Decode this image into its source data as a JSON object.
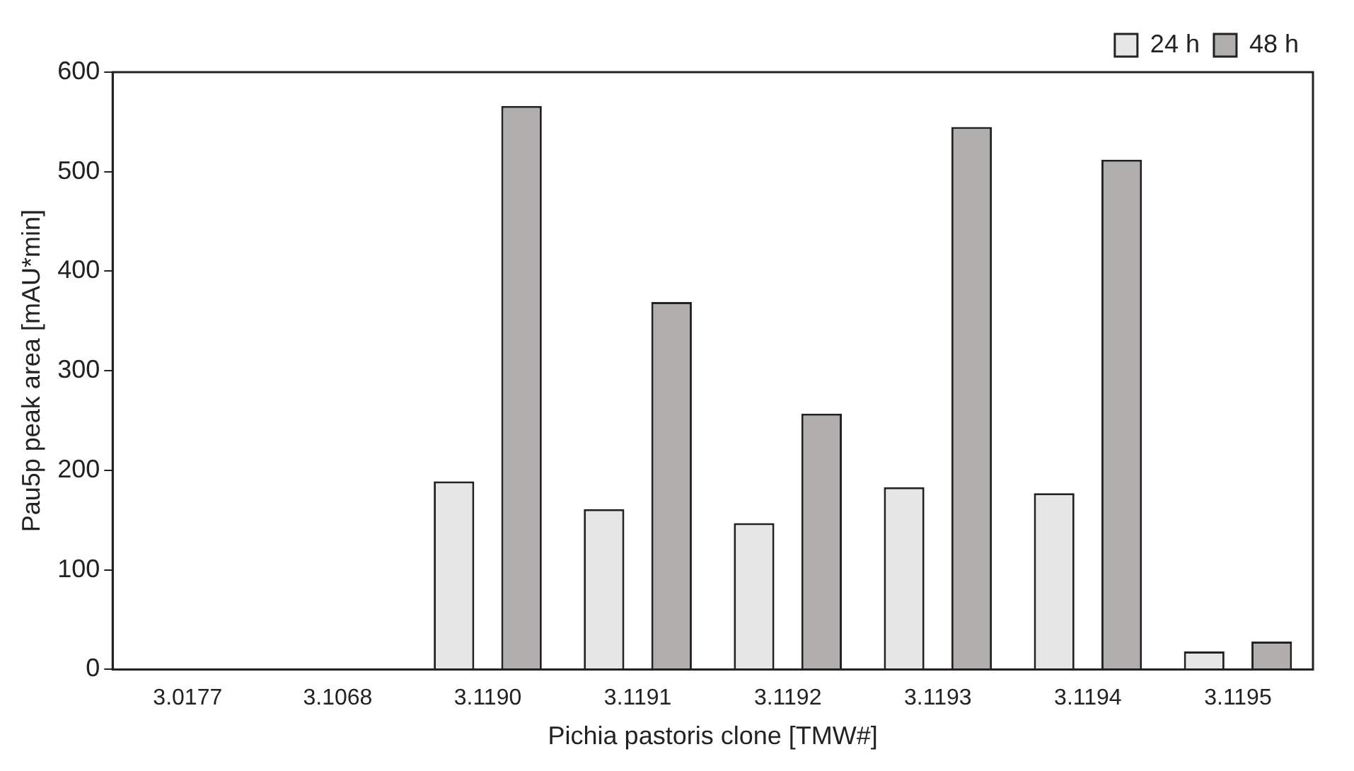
{
  "chart_data": {
    "type": "bar",
    "xlabel": "Pichia pastoris clone [TMW#]",
    "ylabel": "Pau5p peak area [mAU*min]",
    "categories": [
      "3.0177",
      "3.1068",
      "3.1190",
      "3.1191",
      "3.1192",
      "3.1193",
      "3.1194",
      "3.1195"
    ],
    "series": [
      {
        "name": "24 h",
        "color": "#e6e6e6",
        "values": [
          0,
          0,
          189,
          161,
          147,
          183,
          177,
          18
        ]
      },
      {
        "name": "48 h",
        "color": "#b1aeae",
        "values": [
          0,
          0,
          566,
          369,
          257,
          545,
          512,
          28
        ]
      }
    ],
    "ylim": [
      0,
      600
    ],
    "yticks": [
      0,
      100,
      200,
      300,
      400,
      500,
      600
    ],
    "grid": false,
    "legend": "top right"
  }
}
